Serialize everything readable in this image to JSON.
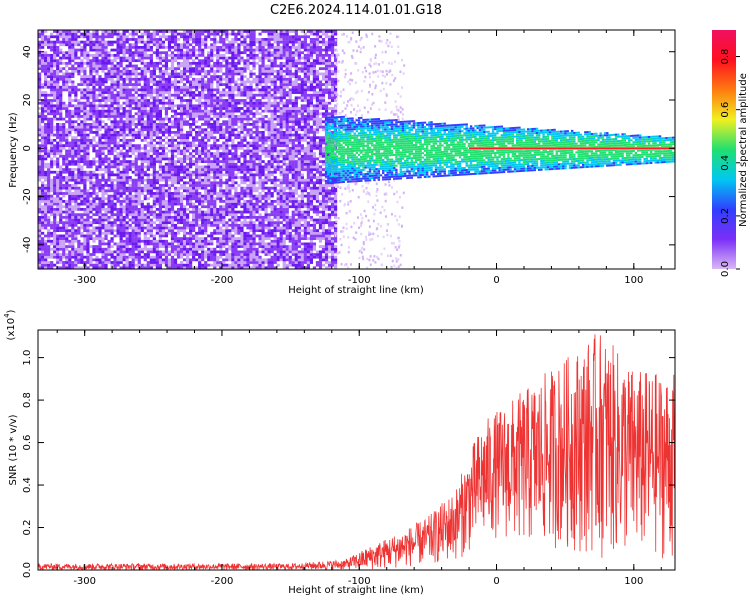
{
  "title": "C2E6.2024.114.01.01.G18",
  "chart_data": [
    {
      "type": "heatmap",
      "xlabel": "Height of straight line (km)",
      "ylabel": "Frequency (Hz)",
      "xlim": [
        -334,
        130
      ],
      "ylim": [
        -50,
        49
      ],
      "xticks": [
        -300,
        -200,
        -100,
        0,
        100
      ],
      "yticks": [
        -40,
        -20,
        0,
        20,
        40
      ],
      "grid": false,
      "noise_region_x": [
        -334,
        -118
      ],
      "signal_line_frequency": 0,
      "signal_band_start_x": -125,
      "colorbar": {
        "label": "Normalized spectral amplitude",
        "range": [
          0.0,
          0.9
        ],
        "ticks": [
          0.0,
          0.2,
          0.4,
          0.6,
          0.8
        ],
        "colors": [
          "#d9b8f5",
          "#7b2ff7",
          "#3040ff",
          "#00c8f0",
          "#20e070",
          "#f0f020",
          "#ff7a10",
          "#ff1020",
          "#f01060"
        ]
      }
    },
    {
      "type": "line",
      "xlabel": "Height of straight line (km)",
      "ylabel": "SNR (10 * v/v)",
      "yscale_label_main": "(x10",
      "yscale_label_exp": "4",
      "yscale_label_close": ")",
      "xlim": [
        -334,
        130
      ],
      "ylim": [
        0,
        1.13
      ],
      "xticks": [
        -300,
        -200,
        -100,
        0,
        100
      ],
      "yticks": [
        0.0,
        0.2,
        0.4,
        0.6,
        0.8,
        1.0
      ],
      "grid": false,
      "color": "#ee3333",
      "envelope": [
        {
          "x": -334,
          "low": 0.0,
          "high": 0.03
        },
        {
          "x": -250,
          "low": 0.0,
          "high": 0.03
        },
        {
          "x": -150,
          "low": 0.0,
          "high": 0.03
        },
        {
          "x": -110,
          "low": 0.0,
          "high": 0.05
        },
        {
          "x": -90,
          "low": 0.0,
          "high": 0.12
        },
        {
          "x": -70,
          "low": 0.01,
          "high": 0.18
        },
        {
          "x": -50,
          "low": 0.02,
          "high": 0.25
        },
        {
          "x": -30,
          "low": 0.04,
          "high": 0.38
        },
        {
          "x": -20,
          "low": 0.08,
          "high": 0.55
        },
        {
          "x": -10,
          "low": 0.12,
          "high": 0.7
        },
        {
          "x": 0,
          "low": 0.15,
          "high": 0.75
        },
        {
          "x": 20,
          "low": 0.1,
          "high": 0.85
        },
        {
          "x": 40,
          "low": 0.1,
          "high": 0.95
        },
        {
          "x": 60,
          "low": 0.08,
          "high": 1.05
        },
        {
          "x": 75,
          "low": 0.05,
          "high": 1.13
        },
        {
          "x": 100,
          "low": 0.05,
          "high": 0.95
        },
        {
          "x": 130,
          "low": 0.05,
          "high": 0.92
        }
      ]
    }
  ]
}
